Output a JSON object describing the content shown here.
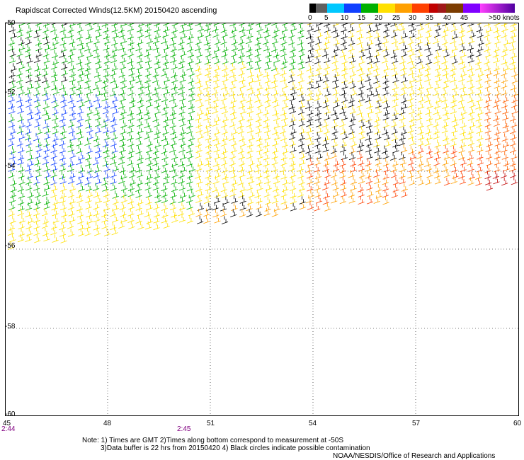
{
  "title": "Rapidscat Corrected Winds(12.5KM) 20150420 ascending",
  "legend": {
    "labels": [
      "0",
      "5",
      "10",
      "15",
      "20",
      "25",
      "30",
      "35",
      "40",
      "45",
      ">50 knots"
    ],
    "colors": [
      "#000000",
      "#606060",
      "#00c8ff",
      "#1040ff",
      "#00b000",
      "#ffe000",
      "#ffa000",
      "#ff4000",
      "#c00000",
      "#a01818",
      "#7c3c00",
      "#8000ff",
      "#ff40ff"
    ]
  },
  "map": {
    "lat_labels": [
      "-50",
      "-52",
      "-54",
      "-56",
      "-58",
      "-60"
    ],
    "lon_labels": [
      "45",
      "48",
      "51",
      "54",
      "57",
      "60"
    ],
    "time_labels": [
      "2:44",
      "2:45"
    ]
  },
  "notes": {
    "line1": "Note: 1) Times are GMT 2)Times along bottom correspond to measurement at -50S",
    "line2": "3)Data buffer is 22 hrs from 20150420 4) Black circles indicate possible contamination",
    "credit": "NOAA/NESDIS/Office of Research and Applications"
  }
}
